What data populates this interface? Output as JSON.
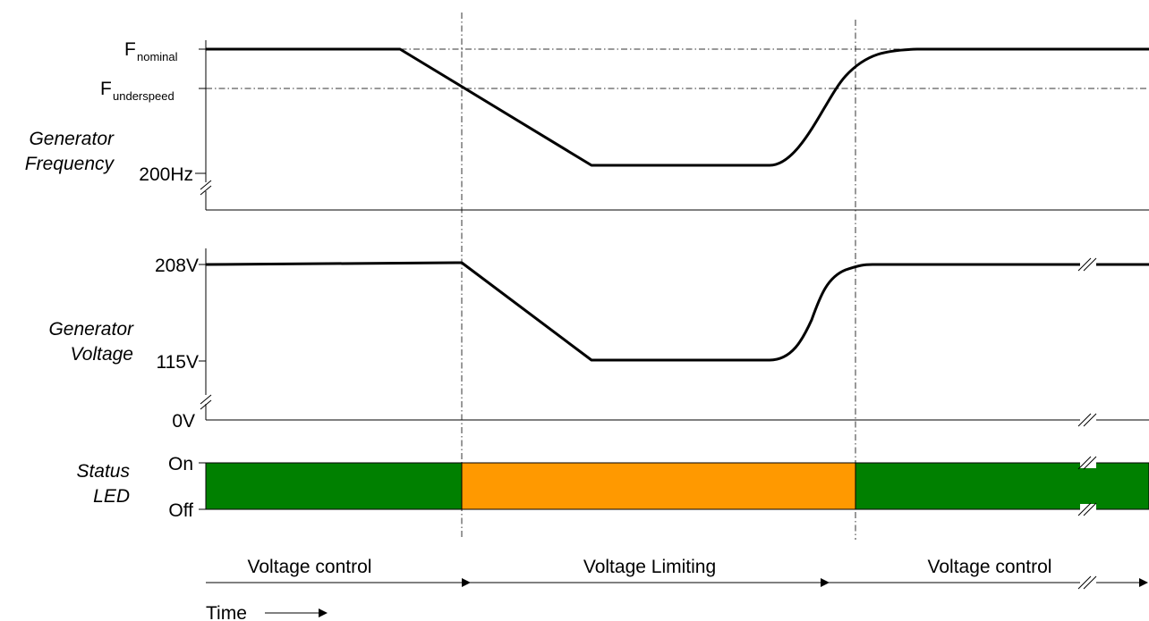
{
  "frequency_panel": {
    "title_line1": "Generator",
    "title_line2": "Frequency",
    "f_symbol": "F",
    "nominal_subscript": "nominal",
    "underspeed_subscript": "underspeed",
    "tick_200hz": "200Hz"
  },
  "voltage_panel": {
    "title_line1": "Generator",
    "title_line2": "Voltage",
    "tick_208v": "208V",
    "tick_115v": "115V",
    "tick_0v": "0V"
  },
  "led_panel": {
    "title_line1": "Status",
    "title_line2": "LED",
    "tick_on": "On",
    "tick_off": "Off",
    "segments": [
      {
        "state": "normal",
        "color": "#008000"
      },
      {
        "state": "limiting",
        "color": "#ff9900"
      },
      {
        "state": "normal",
        "color": "#008000"
      }
    ]
  },
  "phases": [
    {
      "label": "Voltage control"
    },
    {
      "label": "Voltage Limiting"
    },
    {
      "label": "Voltage control"
    }
  ],
  "time_axis": {
    "label": "Time"
  }
}
